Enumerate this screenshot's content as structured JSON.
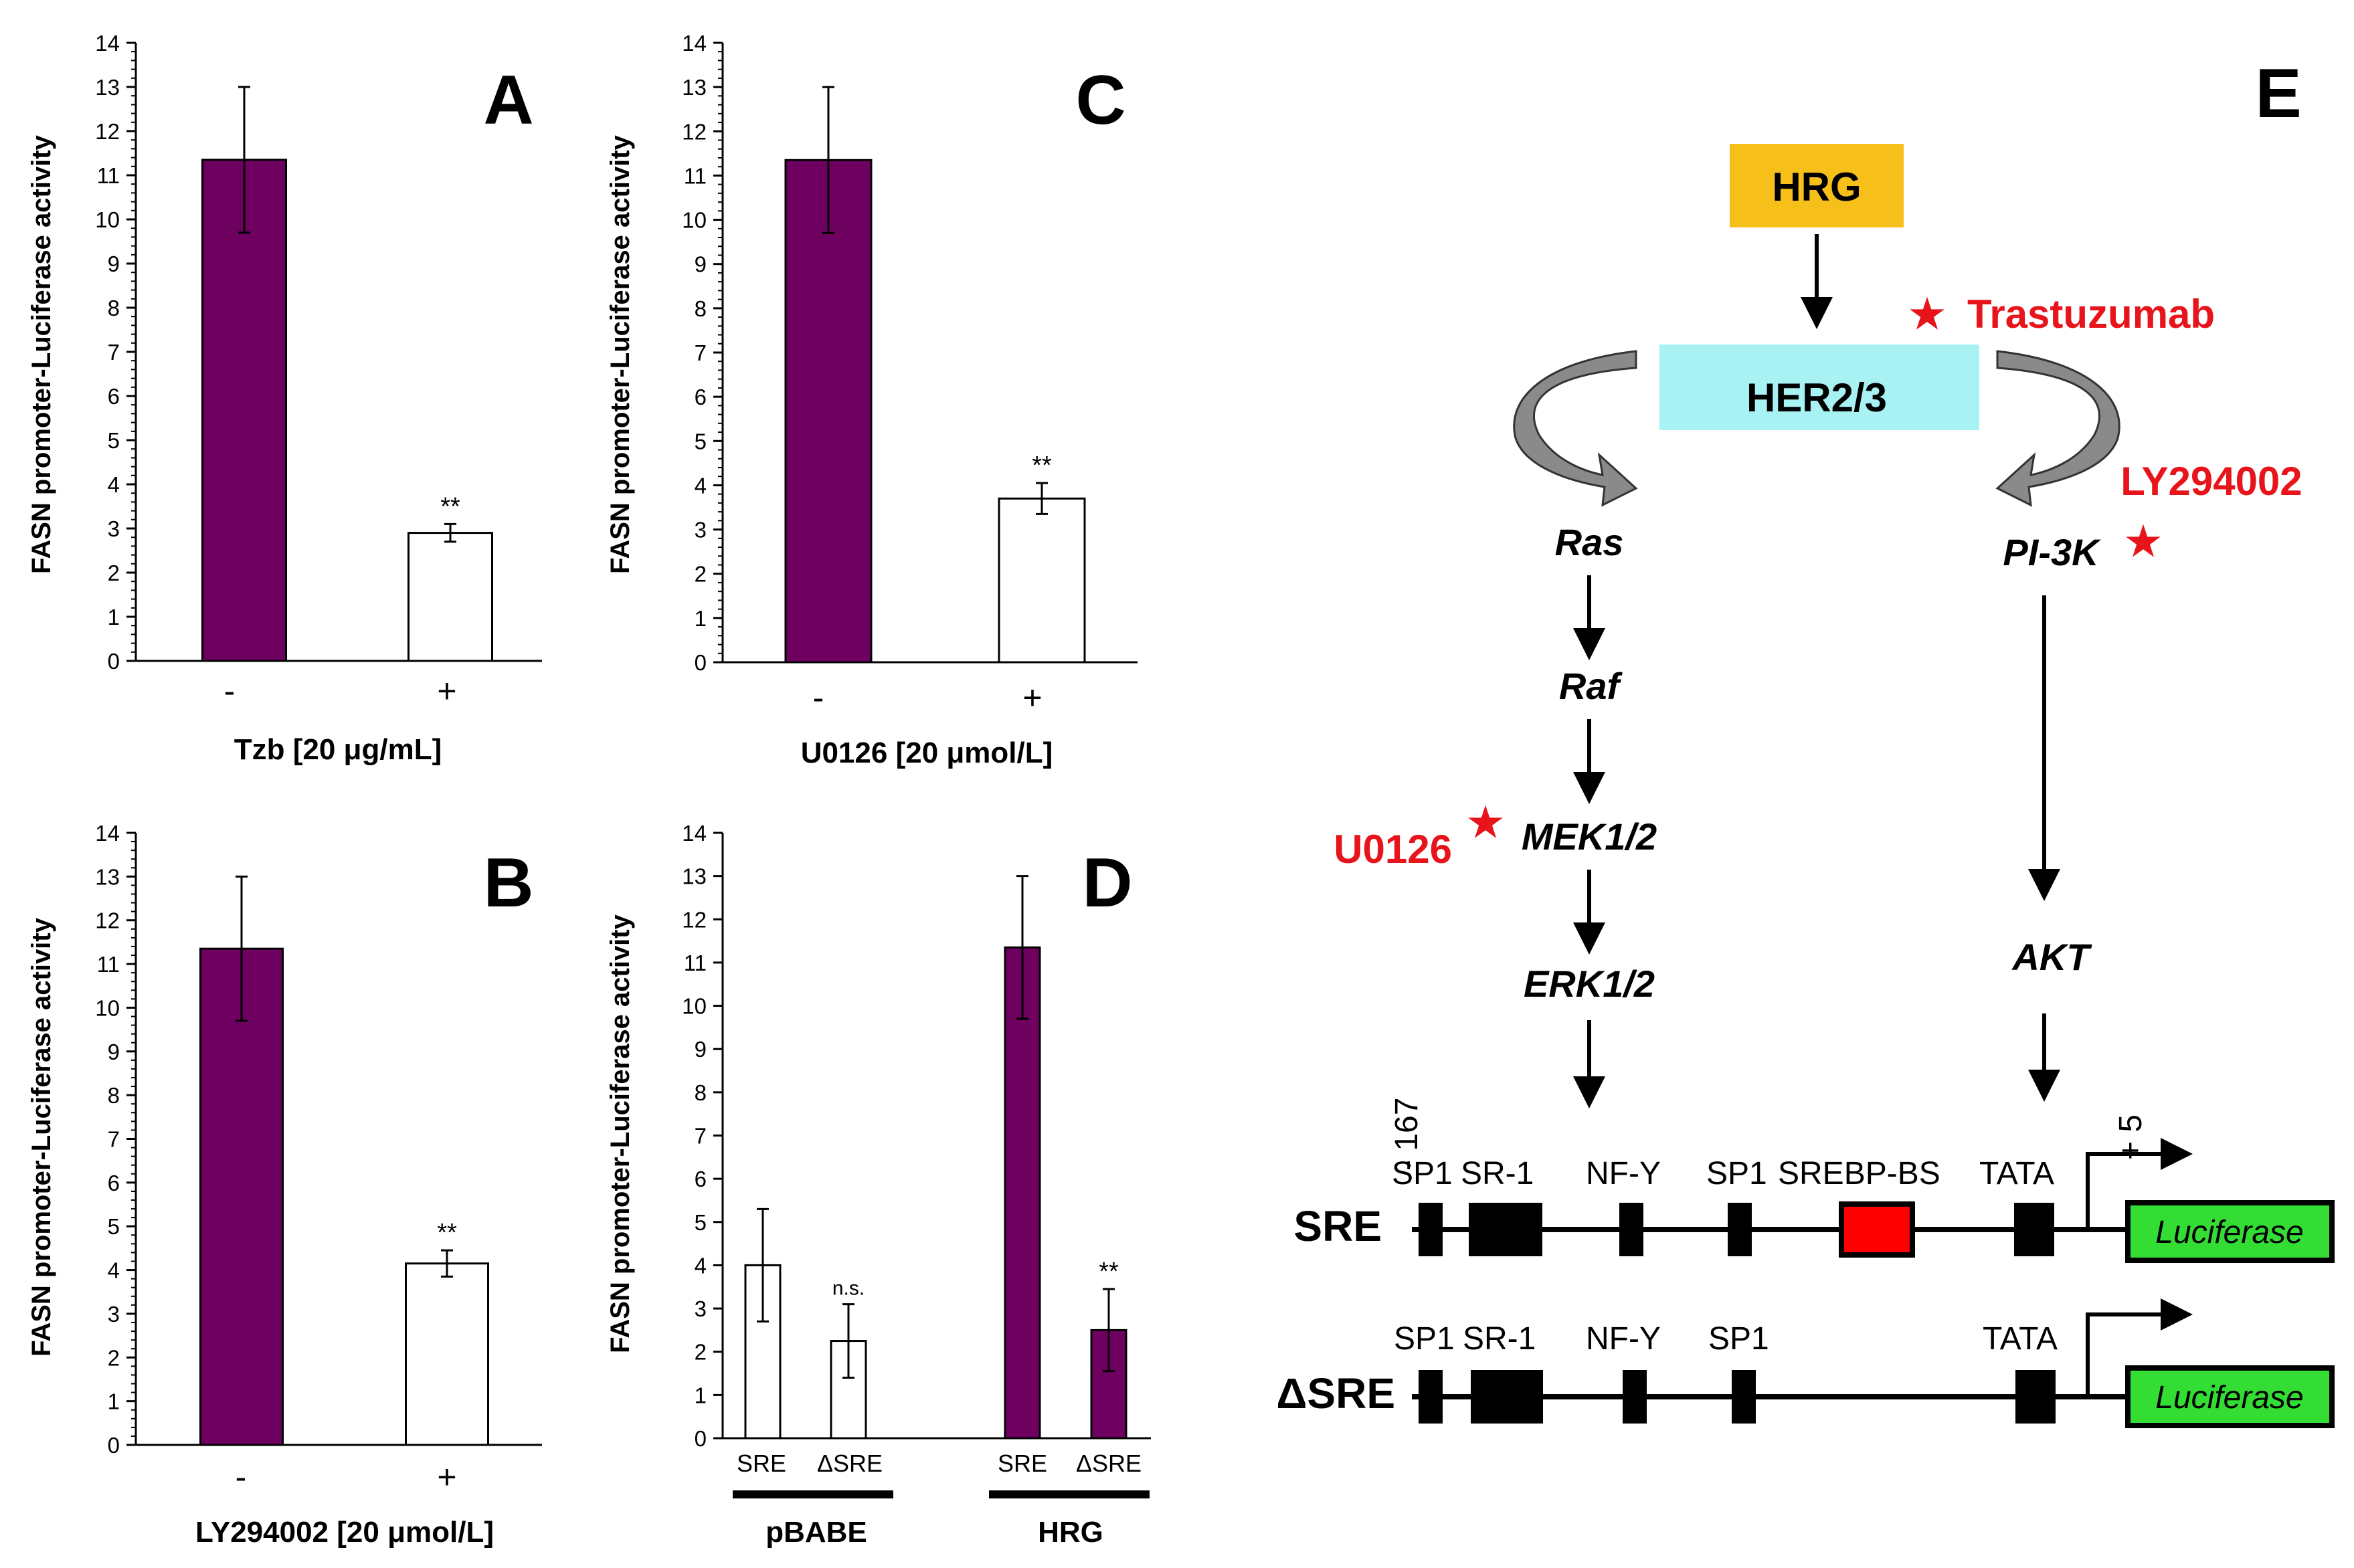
{
  "y_ticks": [
    "0",
    "1",
    "2",
    "3",
    "4",
    "5",
    "6",
    "7",
    "8",
    "9",
    "10",
    "11",
    "12",
    "13",
    "14"
  ],
  "chart_data": [
    {
      "type": "bar",
      "panel": "A",
      "ylabel": "FASN promoter-Luciferase activity",
      "xlabel": "Tzb [20 μg/mL]",
      "categories": [
        "-",
        "+"
      ],
      "values": [
        11.35,
        2.9
      ],
      "errors": [
        1.65,
        0.2
      ],
      "colors": [
        "#6e0060",
        "#ffffff"
      ],
      "significance": [
        "",
        "**"
      ],
      "ylim": [
        0,
        14
      ]
    },
    {
      "type": "bar",
      "panel": "C",
      "ylabel": "FASN promoter-Luciferase activity",
      "xlabel": "U0126 [20 μmol/L]",
      "categories": [
        "-",
        "+"
      ],
      "values": [
        11.35,
        3.7
      ],
      "errors": [
        1.65,
        0.35
      ],
      "colors": [
        "#6e0060",
        "#ffffff"
      ],
      "significance": [
        "",
        "**"
      ],
      "ylim": [
        0,
        14
      ]
    },
    {
      "type": "bar",
      "panel": "B",
      "ylabel": "FASN promoter-Luciferase activity",
      "xlabel": "LY294002 [20 μmol/L]",
      "categories": [
        "-",
        "+"
      ],
      "values": [
        11.35,
        4.15
      ],
      "errors": [
        1.65,
        0.3
      ],
      "colors": [
        "#6e0060",
        "#ffffff"
      ],
      "significance": [
        "",
        "**"
      ],
      "ylim": [
        0,
        14
      ]
    },
    {
      "type": "bar",
      "panel": "D",
      "ylabel": "FASN promoter-Luciferase activity",
      "categories": [
        "SRE",
        "ΔSRE",
        "SRE",
        "ΔSRE"
      ],
      "groups": [
        "pBABE",
        "HRG"
      ],
      "values": [
        4.0,
        2.25,
        11.35,
        2.5
      ],
      "errors": [
        1.3,
        0.85,
        1.65,
        0.95
      ],
      "colors": [
        "#ffffff",
        "#ffffff",
        "#6e0060",
        "#6e0060"
      ],
      "significance": [
        "",
        "n.s.",
        "",
        "**"
      ],
      "ylim": [
        0,
        14
      ]
    }
  ],
  "diagram": {
    "panel_label": "E",
    "hrg": "HRG",
    "receptor": "HER2/3",
    "trastuzumab": "Trastuzumab",
    "ly294002": "LY294002",
    "u0126": "U0126",
    "ras": "Ras",
    "raf": "Raf",
    "mek": "MEK1/2",
    "erk": "ERK1/2",
    "pi3k": "PI-3K",
    "akt": "AKT",
    "pos_start": "- 167",
    "pos_end": "+ 5",
    "sre_name": "SRE",
    "dsre_name": "ΔSRE",
    "sre_elements": [
      "SP1",
      "SR-1",
      "NF-Y",
      "SP1",
      "SREBP-BS",
      "TATA"
    ],
    "dsre_elements": [
      "SP1",
      "SR-1",
      "NF-Y",
      "SP1",
      "TATA"
    ],
    "luciferase": "Luciferase",
    "colors": {
      "hrg": "#f7bf1a",
      "receptor": "#a8f2f4",
      "srebp": "#ff0000",
      "luciferase": "#33dd33",
      "drug": "#e8141b",
      "bar": "#6e0060"
    }
  }
}
